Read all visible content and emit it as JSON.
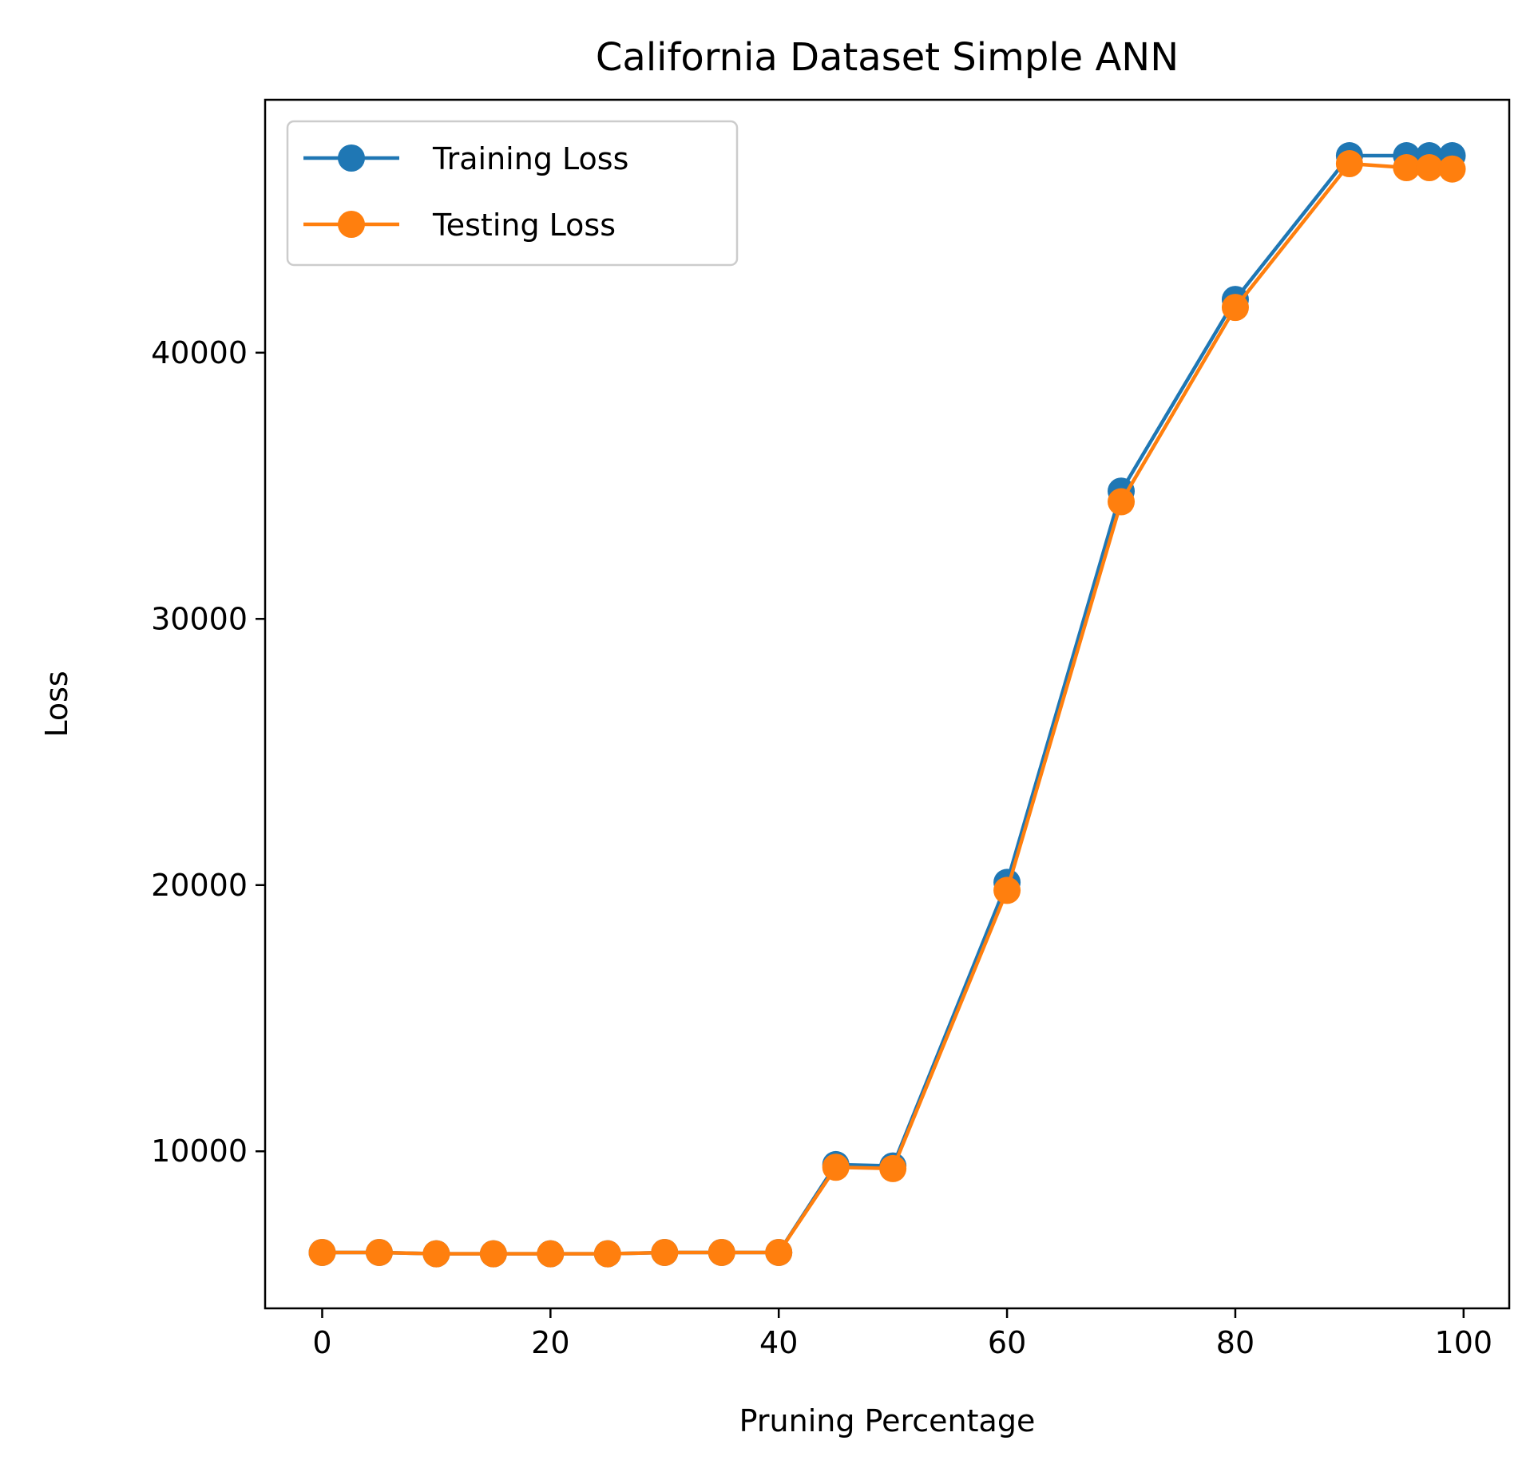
{
  "chart_data": {
    "type": "line",
    "title": "California Dataset Simple ANN",
    "xlabel": "Pruning Percentage",
    "ylabel": "Loss",
    "xlim": [
      -5,
      104
    ],
    "ylim": [
      4100,
      49500
    ],
    "xticks": [
      0,
      20,
      40,
      60,
      80,
      100
    ],
    "yticks": [
      10000,
      20000,
      30000,
      40000
    ],
    "x": [
      0,
      5,
      10,
      15,
      20,
      25,
      30,
      35,
      40,
      45,
      50,
      60,
      70,
      80,
      90,
      95,
      97,
      99
    ],
    "series": [
      {
        "name": "Training Loss",
        "color": "#1f77b4",
        "values": [
          6200,
          6200,
          6150,
          6150,
          6150,
          6150,
          6200,
          6200,
          6200,
          9500,
          9450,
          20100,
          34800,
          42000,
          47400,
          47400,
          47400,
          47400
        ]
      },
      {
        "name": "Testing Loss",
        "color": "#ff7f0e",
        "values": [
          6200,
          6200,
          6150,
          6150,
          6150,
          6150,
          6200,
          6200,
          6200,
          9400,
          9350,
          19800,
          34400,
          41700,
          47100,
          46950,
          46950,
          46900
        ]
      }
    ],
    "legend_position": "top-left",
    "grid": false
  }
}
